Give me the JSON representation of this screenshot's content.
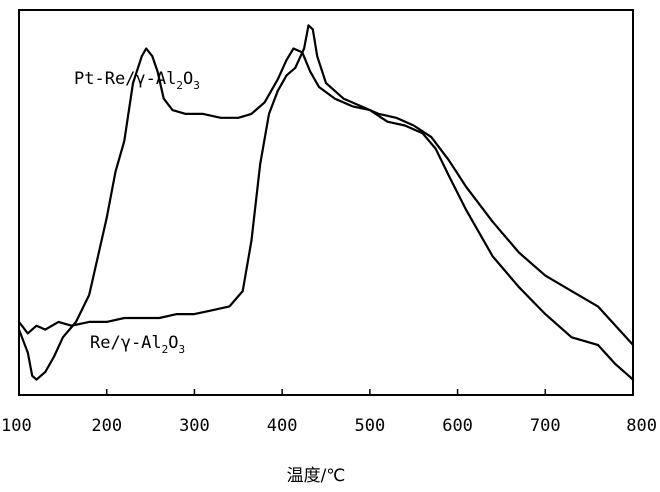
{
  "chart_data": {
    "type": "line",
    "xlabel": "温度/℃",
    "ylabel": "",
    "xlim": [
      100,
      800
    ],
    "ylim": [
      0,
      100
    ],
    "grid": false,
    "x_ticks": [
      100,
      200,
      300,
      400,
      500,
      600,
      700,
      800
    ],
    "series": [
      {
        "name": "Pt-Re/γ-Al2O3",
        "label_main": [
          "Pt-Re/γ-Al",
          "O"
        ],
        "label_subs": [
          "2",
          "3"
        ],
        "points": [
          [
            100,
            17
          ],
          [
            110,
            11
          ],
          [
            115,
            5
          ],
          [
            120,
            4
          ],
          [
            130,
            6
          ],
          [
            140,
            10
          ],
          [
            150,
            15
          ],
          [
            165,
            19
          ],
          [
            180,
            26
          ],
          [
            200,
            46
          ],
          [
            210,
            58
          ],
          [
            220,
            66
          ],
          [
            230,
            81
          ],
          [
            240,
            88
          ],
          [
            245,
            90
          ],
          [
            252,
            88
          ],
          [
            258,
            84
          ],
          [
            265,
            77
          ],
          [
            275,
            74
          ],
          [
            290,
            73
          ],
          [
            310,
            73
          ],
          [
            330,
            72
          ],
          [
            350,
            72
          ],
          [
            365,
            73
          ],
          [
            380,
            76
          ],
          [
            395,
            82
          ],
          [
            405,
            87
          ],
          [
            413,
            90
          ],
          [
            423,
            89
          ],
          [
            432,
            84
          ],
          [
            442,
            80
          ],
          [
            460,
            77
          ],
          [
            480,
            75
          ],
          [
            500,
            74
          ],
          [
            520,
            71
          ],
          [
            540,
            70
          ],
          [
            560,
            68
          ],
          [
            575,
            64
          ],
          [
            590,
            57
          ],
          [
            610,
            48
          ],
          [
            640,
            36
          ],
          [
            670,
            28
          ],
          [
            700,
            21
          ],
          [
            730,
            15
          ],
          [
            760,
            13
          ],
          [
            780,
            8
          ],
          [
            800,
            4
          ]
        ]
      },
      {
        "name": "Re/γ-Al2O3",
        "label_main": [
          "Re/γ-Al",
          "O"
        ],
        "label_subs": [
          "2",
          "3"
        ],
        "points": [
          [
            100,
            19
          ],
          [
            110,
            16
          ],
          [
            120,
            18
          ],
          [
            130,
            17
          ],
          [
            145,
            19
          ],
          [
            160,
            18
          ],
          [
            180,
            19
          ],
          [
            200,
            19
          ],
          [
            220,
            20
          ],
          [
            240,
            20
          ],
          [
            260,
            20
          ],
          [
            280,
            21
          ],
          [
            300,
            21
          ],
          [
            320,
            22
          ],
          [
            340,
            23
          ],
          [
            355,
            27
          ],
          [
            365,
            40
          ],
          [
            375,
            60
          ],
          [
            385,
            73
          ],
          [
            395,
            79
          ],
          [
            405,
            83
          ],
          [
            415,
            85
          ],
          [
            425,
            90
          ],
          [
            430,
            96
          ],
          [
            435,
            95
          ],
          [
            440,
            88
          ],
          [
            450,
            81
          ],
          [
            470,
            77
          ],
          [
            490,
            75
          ],
          [
            510,
            73
          ],
          [
            530,
            72
          ],
          [
            550,
            70
          ],
          [
            570,
            67
          ],
          [
            590,
            61
          ],
          [
            610,
            54
          ],
          [
            640,
            45
          ],
          [
            670,
            37
          ],
          [
            700,
            31
          ],
          [
            730,
            27
          ],
          [
            760,
            23
          ],
          [
            800,
            13
          ]
        ]
      }
    ]
  }
}
